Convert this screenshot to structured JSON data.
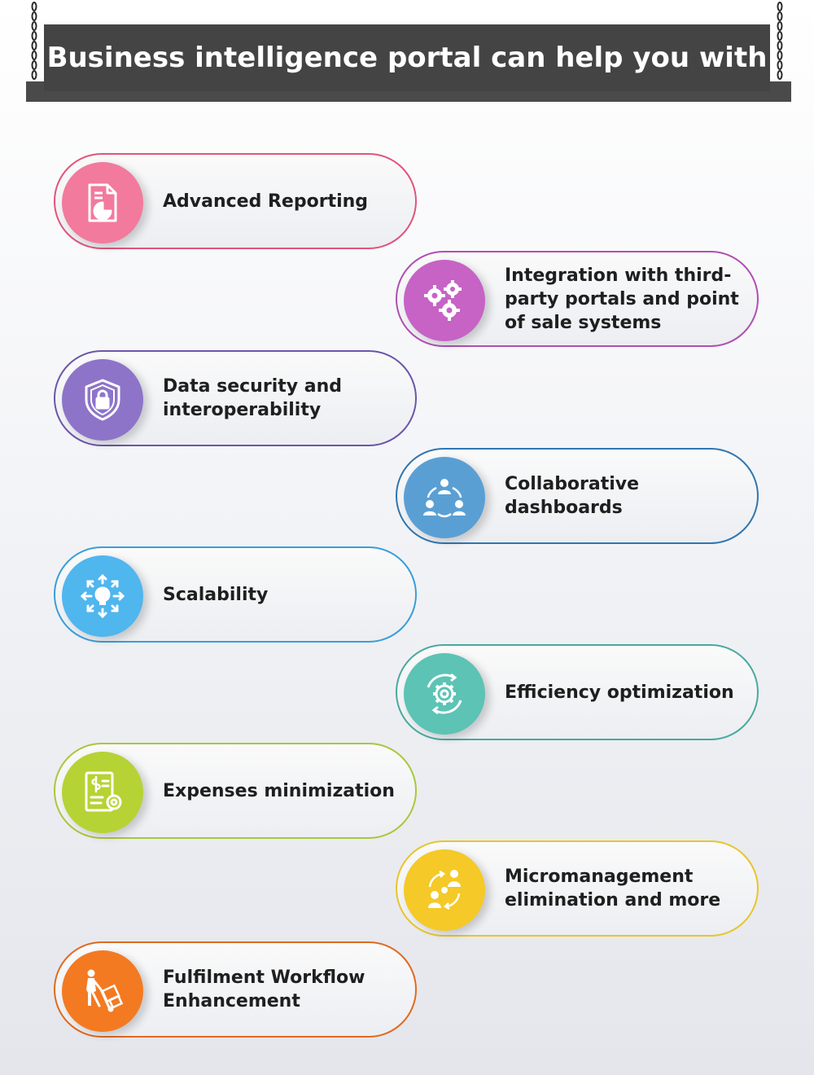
{
  "header": {
    "title": "Business intelligence portal can help you with"
  },
  "items": [
    {
      "label": "Advanced Reporting",
      "icon": "report-icon",
      "color": "#f27a9c",
      "border": "#e2547a"
    },
    {
      "label": "Integration with third-party portals and point of sale systems",
      "icon": "gears-icon",
      "color": "#c663c5",
      "border": "#b04fb3"
    },
    {
      "label": "Data security and interoperability",
      "icon": "shield-lock-icon",
      "color": "#8d74c9",
      "border": "#6d55a9"
    },
    {
      "label": "Collaborative dashboards",
      "icon": "team-icon",
      "color": "#5a9fd4",
      "border": "#2f76b0"
    },
    {
      "label": "Scalability",
      "icon": "scale-bulb-icon",
      "color": "#4fb6ee",
      "border": "#3a9ed8"
    },
    {
      "label": "Efficiency optimization",
      "icon": "gear-cycle-icon",
      "color": "#5cc3b5",
      "border": "#4aa9a0"
    },
    {
      "label": "Expenses minimization",
      "icon": "expense-doc-icon",
      "color": "#b5d334",
      "border": "#a8c83a"
    },
    {
      "label": "Micromanagement elimination and more",
      "icon": "people-cycle-icon",
      "color": "#f5c927",
      "border": "#e9c52a"
    },
    {
      "label": "Fulfilment Workflow Enhancement",
      "icon": "delivery-icon",
      "color": "#f37a21",
      "border": "#e06a1f"
    }
  ]
}
